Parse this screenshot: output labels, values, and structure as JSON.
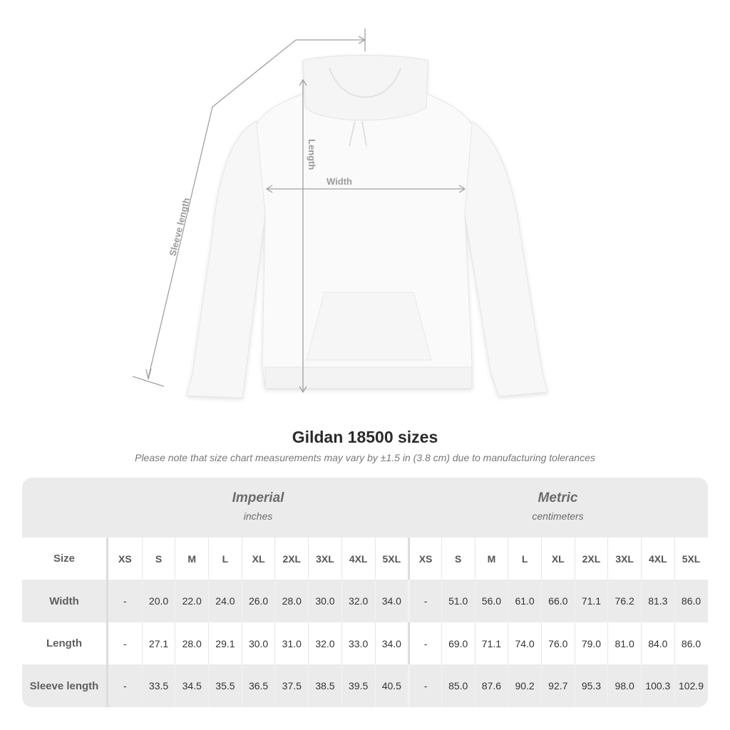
{
  "figure": {
    "labels": {
      "sleeve": "Sleeve length",
      "length": "Length",
      "width": "Width"
    }
  },
  "title": "Gildan 18500 sizes",
  "note": "Please note that size chart measurements may vary by ±1.5 in (3.8 cm) due to manufacturing tolerances",
  "table": {
    "imperial": {
      "title": "Imperial",
      "unit": "inches"
    },
    "metric": {
      "title": "Metric",
      "unit": "centimeters"
    },
    "size_label": "Size",
    "sizes": [
      "XS",
      "S",
      "M",
      "L",
      "XL",
      "2XL",
      "3XL",
      "4XL",
      "5XL"
    ],
    "rows": [
      {
        "label": "Width",
        "imperial": [
          "-",
          "20.0",
          "22.0",
          "24.0",
          "26.0",
          "28.0",
          "30.0",
          "32.0",
          "34.0"
        ],
        "metric": [
          "-",
          "51.0",
          "56.0",
          "61.0",
          "66.0",
          "71.1",
          "76.2",
          "81.3",
          "86.0"
        ]
      },
      {
        "label": "Length",
        "imperial": [
          "-",
          "27.1",
          "28.0",
          "29.1",
          "30.0",
          "31.0",
          "32.0",
          "33.0",
          "34.0"
        ],
        "metric": [
          "-",
          "69.0",
          "71.1",
          "74.0",
          "76.0",
          "79.0",
          "81.0",
          "84.0",
          "86.0"
        ]
      },
      {
        "label": "Sleeve length",
        "imperial": [
          "-",
          "33.5",
          "34.5",
          "35.5",
          "36.5",
          "37.5",
          "38.5",
          "39.5",
          "40.5"
        ],
        "metric": [
          "-",
          "85.0",
          "87.6",
          "90.2",
          "92.7",
          "95.3",
          "98.0",
          "100.3",
          "102.9"
        ]
      }
    ]
  },
  "colors": {
    "header_bg": "#ebebeb",
    "line": "#a0a0a0",
    "title": "#2b2b2b"
  }
}
